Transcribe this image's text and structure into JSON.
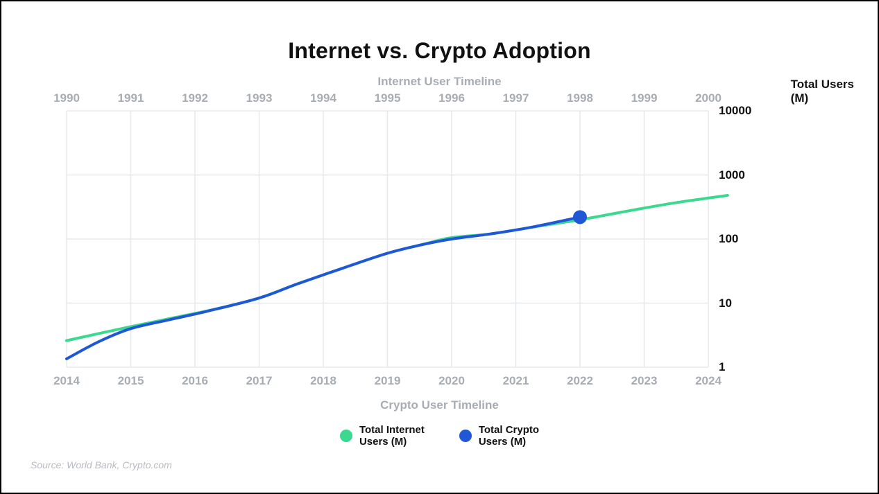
{
  "title": "Internet vs. Crypto Adoption",
  "top_axis_title": "Internet User Timeline",
  "bottom_axis_title": "Crypto User Timeline",
  "y_axis_title_line1": "Total Users",
  "y_axis_title_line2": "(M)",
  "source": "Source: World Bank, Crypto.com",
  "chart": {
    "type": "line",
    "background_color": "#ffffff",
    "grid_color": "#e6e8ea",
    "grid_stroke_width": 1.5,
    "x_domain": [
      0,
      10
    ],
    "x_top_labels": [
      "1990",
      "1991",
      "1992",
      "1993",
      "1994",
      "1995",
      "1996",
      "1997",
      "1998",
      "1999",
      "2000"
    ],
    "x_bottom_labels": [
      "2014",
      "2015",
      "2016",
      "2017",
      "2018",
      "2019",
      "2020",
      "2021",
      "2022",
      "2023",
      "2024"
    ],
    "y_scale": "log",
    "y_domain": [
      1,
      10000
    ],
    "y_ticks": [
      1,
      10,
      100,
      1000,
      10000
    ],
    "y_tick_labels": [
      "1",
      "10",
      "100",
      "1000",
      "10000"
    ],
    "axis_label_color": "#a8adb3",
    "axis_label_fontsize": 17,
    "ytick_label_color": "#111111",
    "ytick_label_fontsize": 17,
    "title_fontsize": 32,
    "title_color": "#111111",
    "line_width": 4,
    "series": [
      {
        "name": "internet",
        "label_line1": "Total Internet",
        "label_line2": "Users (M)",
        "color": "#3bd88f",
        "marker_end": false,
        "data": [
          {
            "x": 0,
            "y": 2.6
          },
          {
            "x": 1,
            "y": 4.3
          },
          {
            "x": 1.7,
            "y": 6.0
          },
          {
            "x": 2.3,
            "y": 8.0
          },
          {
            "x": 3,
            "y": 12
          },
          {
            "x": 3.6,
            "y": 20
          },
          {
            "x": 4.3,
            "y": 35
          },
          {
            "x": 5,
            "y": 60
          },
          {
            "x": 5.6,
            "y": 85
          },
          {
            "x": 6,
            "y": 105
          },
          {
            "x": 6.6,
            "y": 120
          },
          {
            "x": 7.2,
            "y": 150
          },
          {
            "x": 8,
            "y": 200
          },
          {
            "x": 8.8,
            "y": 280
          },
          {
            "x": 9.5,
            "y": 370
          },
          {
            "x": 10.3,
            "y": 480
          }
        ]
      },
      {
        "name": "crypto",
        "label_line1": "Total Crypto",
        "label_line2": "Users (M)",
        "color": "#1f57d6",
        "marker_end": true,
        "end_marker_radius": 10,
        "data": [
          {
            "x": 0,
            "y": 1.35
          },
          {
            "x": 0.5,
            "y": 2.5
          },
          {
            "x": 1,
            "y": 4.0
          },
          {
            "x": 1.6,
            "y": 5.5
          },
          {
            "x": 2.2,
            "y": 7.5
          },
          {
            "x": 3,
            "y": 12
          },
          {
            "x": 3.6,
            "y": 20
          },
          {
            "x": 4.3,
            "y": 35
          },
          {
            "x": 5,
            "y": 60
          },
          {
            "x": 5.5,
            "y": 80
          },
          {
            "x": 6,
            "y": 100
          },
          {
            "x": 6.6,
            "y": 120
          },
          {
            "x": 7.2,
            "y": 150
          },
          {
            "x": 8,
            "y": 220
          }
        ]
      }
    ]
  },
  "legend": {
    "dot_size": 18,
    "items": [
      {
        "series": "internet",
        "color": "#3bd88f",
        "line1": "Total Internet",
        "line2": "Users (M)"
      },
      {
        "series": "crypto",
        "color": "#1f57d6",
        "line1": "Total Crypto",
        "line2": "Users (M)"
      }
    ]
  }
}
